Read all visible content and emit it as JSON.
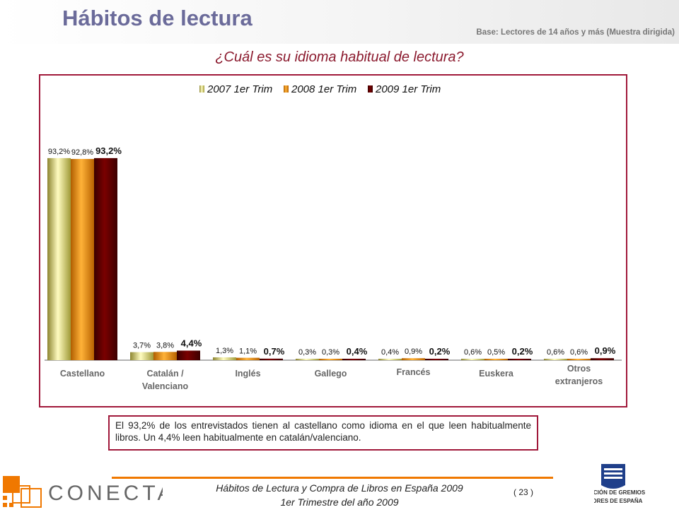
{
  "header": {
    "title": "Hábitos de lectura",
    "base": "Base: Lectores de 14 años y más (Muestra dirigida)"
  },
  "question": "¿Cuál es su idioma habitual de lectura?",
  "chart_data": {
    "type": "bar",
    "categories": [
      [
        "Castellano"
      ],
      [
        "Catalán /",
        "Valenciano"
      ],
      [
        "Inglés"
      ],
      [
        "Gallego"
      ],
      [
        "Francés"
      ],
      [
        "Euskera"
      ],
      [
        "Otros",
        "extranjeros"
      ]
    ],
    "series": [
      {
        "name": "2007 1er Trim",
        "values": [
          93.2,
          3.7,
          1.3,
          0.3,
          0.4,
          0.6,
          0.6
        ],
        "labels": [
          "93,2%",
          "3,7%",
          "1,3%",
          "0,3%",
          "0,4%",
          "0,6%",
          "0,6%"
        ],
        "color": "#d8d26a"
      },
      {
        "name": "2008 1er Trim",
        "values": [
          92.8,
          3.8,
          1.1,
          0.3,
          0.9,
          0.5,
          0.6
        ],
        "labels": [
          "92,8%",
          "3,8%",
          "1,1%",
          "0,3%",
          "0,9%",
          "0,5%",
          "0,6%"
        ],
        "color": "#e88a00"
      },
      {
        "name": "2009 1er Trim",
        "values": [
          93.2,
          4.4,
          0.7,
          0.4,
          0.2,
          0.2,
          0.9
        ],
        "labels": [
          "93,2%",
          "4,4%",
          "0,7%",
          "0,4%",
          "0,2%",
          "0,2%",
          "0,9%"
        ],
        "color": "#6b0000"
      }
    ],
    "ylim": [
      0,
      100
    ],
    "legend": "top-center",
    "grid": false
  },
  "note": "El 93,2% de los entrevistados tienen al castellano como idioma en el que leen habitualmente libros. Un 4,4% leen habitualmente en catalán/valenciano.",
  "footer": {
    "line1": "Hábitos de Lectura y Compra de Libros en España 2009",
    "line2": "1er Trimestre del año 2009",
    "page": "( 23 )",
    "logo_left": "CONECTA",
    "logo_right": [
      "FEDERACIÓN DE GREMIOS",
      "DE EDITORES DE ESPAÑA"
    ]
  }
}
